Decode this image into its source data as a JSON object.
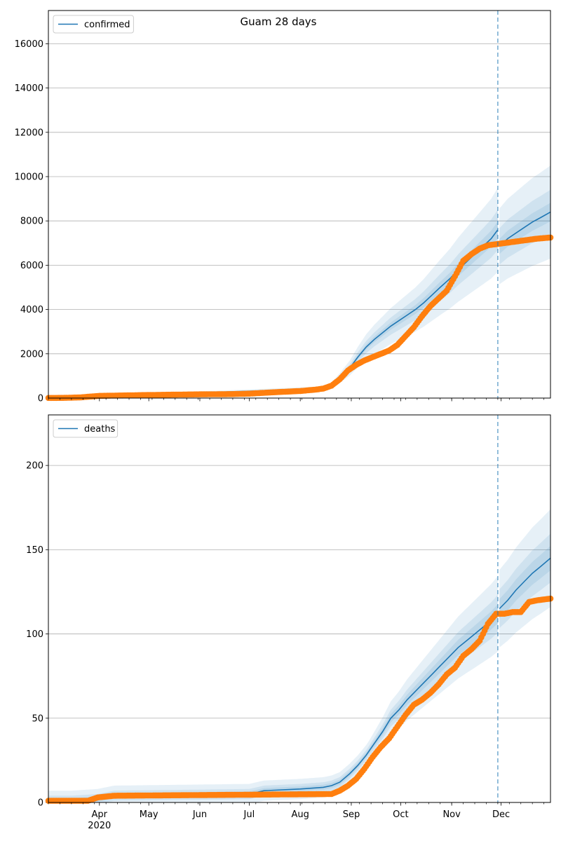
{
  "title": "Guam 28 days",
  "colors": {
    "model_line": "#1f77b4",
    "band": "#1f77b4",
    "observed": "#ff7f0e",
    "grid": "#b0b0b0",
    "forecast_marker": "#1f77b4"
  },
  "x_axis": {
    "range": [
      "2020-03-01",
      "2020-12-31"
    ],
    "month_ticks": [
      {
        "date": "2020-04-01",
        "label": "Apr",
        "sub": "2020"
      },
      {
        "date": "2020-05-01",
        "label": "May",
        "sub": ""
      },
      {
        "date": "2020-06-01",
        "label": "Jun",
        "sub": ""
      },
      {
        "date": "2020-07-01",
        "label": "Jul",
        "sub": ""
      },
      {
        "date": "2020-08-01",
        "label": "Aug",
        "sub": ""
      },
      {
        "date": "2020-09-01",
        "label": "Sep",
        "sub": ""
      },
      {
        "date": "2020-10-01",
        "label": "Oct",
        "sub": ""
      },
      {
        "date": "2020-11-01",
        "label": "Nov",
        "sub": ""
      },
      {
        "date": "2020-12-01",
        "label": "Dec",
        "sub": ""
      }
    ]
  },
  "forecast_marker_date": "2020-11-29",
  "chart_data": [
    {
      "type": "line",
      "legend": "confirmed",
      "legend_position": "upper-left",
      "grid": "y",
      "ylim": [
        0,
        17500
      ],
      "yticks": [
        0,
        2000,
        4000,
        6000,
        8000,
        10000,
        12000,
        14000,
        16000
      ],
      "band_scale": [
        0.25,
        0.12,
        0.05
      ],
      "model": {
        "name": "confirmed",
        "x": [
          "2020-03-01",
          "2020-08-15",
          "2020-08-20",
          "2020-08-25",
          "2020-08-31",
          "2020-09-05",
          "2020-09-10",
          "2020-09-15",
          "2020-09-20",
          "2020-09-25",
          "2020-09-30",
          "2020-10-05",
          "2020-10-10",
          "2020-10-15",
          "2020-10-20",
          "2020-10-25",
          "2020-10-31",
          "2020-11-05",
          "2020-11-10",
          "2020-11-15",
          "2020-11-20",
          "2020-11-25",
          "2020-11-29",
          "2020-11-30",
          "2020-12-05",
          "2020-12-10",
          "2020-12-15",
          "2020-12-20",
          "2020-12-25",
          "2020-12-31"
        ],
        "y": [
          20,
          420,
          560,
          900,
          1350,
          1850,
          2300,
          2650,
          2950,
          3250,
          3500,
          3750,
          4000,
          4300,
          4650,
          5000,
          5400,
          5800,
          6150,
          6500,
          6850,
          7200,
          7600,
          6850,
          7200,
          7450,
          7700,
          7950,
          8150,
          8400
        ]
      },
      "observed": {
        "x": [
          "2020-03-01",
          "2020-03-10",
          "2020-03-20",
          "2020-04-01",
          "2020-05-01",
          "2020-06-01",
          "2020-06-20",
          "2020-07-01",
          "2020-07-15",
          "2020-08-01",
          "2020-08-10",
          "2020-08-15",
          "2020-08-20",
          "2020-08-25",
          "2020-08-30",
          "2020-09-04",
          "2020-09-09",
          "2020-09-14",
          "2020-09-19",
          "2020-09-24",
          "2020-09-29",
          "2020-10-04",
          "2020-10-09",
          "2020-10-14",
          "2020-10-19",
          "2020-10-24",
          "2020-10-29",
          "2020-11-03",
          "2020-11-08",
          "2020-11-13",
          "2020-11-18",
          "2020-11-23",
          "2020-11-28",
          "2020-12-03",
          "2020-12-08",
          "2020-12-13",
          "2020-12-18",
          "2020-12-23",
          "2020-12-31"
        ],
        "y": [
          5,
          10,
          30,
          100,
          140,
          170,
          180,
          200,
          260,
          320,
          380,
          430,
          560,
          850,
          1250,
          1500,
          1700,
          1850,
          2000,
          2150,
          2400,
          2800,
          3200,
          3700,
          4150,
          4500,
          4850,
          5500,
          6200,
          6500,
          6750,
          6900,
          6950,
          7000,
          7050,
          7100,
          7150,
          7200,
          7250
        ]
      }
    },
    {
      "type": "line",
      "legend": "deaths",
      "legend_position": "upper-left",
      "grid": "y",
      "ylim": [
        0,
        230
      ],
      "yticks": [
        0,
        50,
        100,
        150,
        200
      ],
      "band_scale": [
        0.2,
        0.1,
        0.05
      ],
      "band_floor": 3,
      "model": {
        "name": "deaths",
        "x": [
          "2020-03-01",
          "2020-03-15",
          "2020-03-31",
          "2020-04-10",
          "2020-07-01",
          "2020-07-10",
          "2020-08-01",
          "2020-08-15",
          "2020-08-20",
          "2020-08-25",
          "2020-08-31",
          "2020-09-05",
          "2020-09-10",
          "2020-09-15",
          "2020-09-20",
          "2020-09-25",
          "2020-09-30",
          "2020-10-05",
          "2020-10-10",
          "2020-10-15",
          "2020-10-20",
          "2020-10-25",
          "2020-10-31",
          "2020-11-05",
          "2020-11-10",
          "2020-11-15",
          "2020-11-20",
          "2020-11-25",
          "2020-11-29",
          "2020-11-30",
          "2020-12-05",
          "2020-12-10",
          "2020-12-15",
          "2020-12-20",
          "2020-12-25",
          "2020-12-31"
        ],
        "y": [
          1,
          1,
          2,
          4,
          5,
          7,
          8,
          9,
          10,
          12,
          17,
          22,
          28,
          35,
          42,
          50,
          55,
          61,
          66,
          71,
          76,
          81,
          87,
          92,
          96,
          100,
          104,
          108,
          112,
          115,
          120,
          126,
          131,
          136,
          140,
          145
        ]
      },
      "observed": {
        "x": [
          "2020-03-01",
          "2020-03-25",
          "2020-03-31",
          "2020-04-10",
          "2020-08-20",
          "2020-08-25",
          "2020-08-30",
          "2020-09-04",
          "2020-09-09",
          "2020-09-14",
          "2020-09-19",
          "2020-09-24",
          "2020-09-29",
          "2020-10-04",
          "2020-10-09",
          "2020-10-14",
          "2020-10-19",
          "2020-10-24",
          "2020-10-29",
          "2020-11-03",
          "2020-11-08",
          "2020-11-13",
          "2020-11-18",
          "2020-11-23",
          "2020-11-28",
          "2020-12-03",
          "2020-12-08",
          "2020-12-13",
          "2020-12-18",
          "2020-12-23",
          "2020-12-31"
        ],
        "y": [
          1,
          1,
          3,
          4,
          5,
          7,
          10,
          14,
          20,
          27,
          33,
          38,
          45,
          52,
          58,
          61,
          65,
          70,
          76,
          80,
          87,
          91,
          96,
          106,
          112,
          112,
          113,
          113,
          119,
          120,
          121
        ]
      }
    }
  ]
}
